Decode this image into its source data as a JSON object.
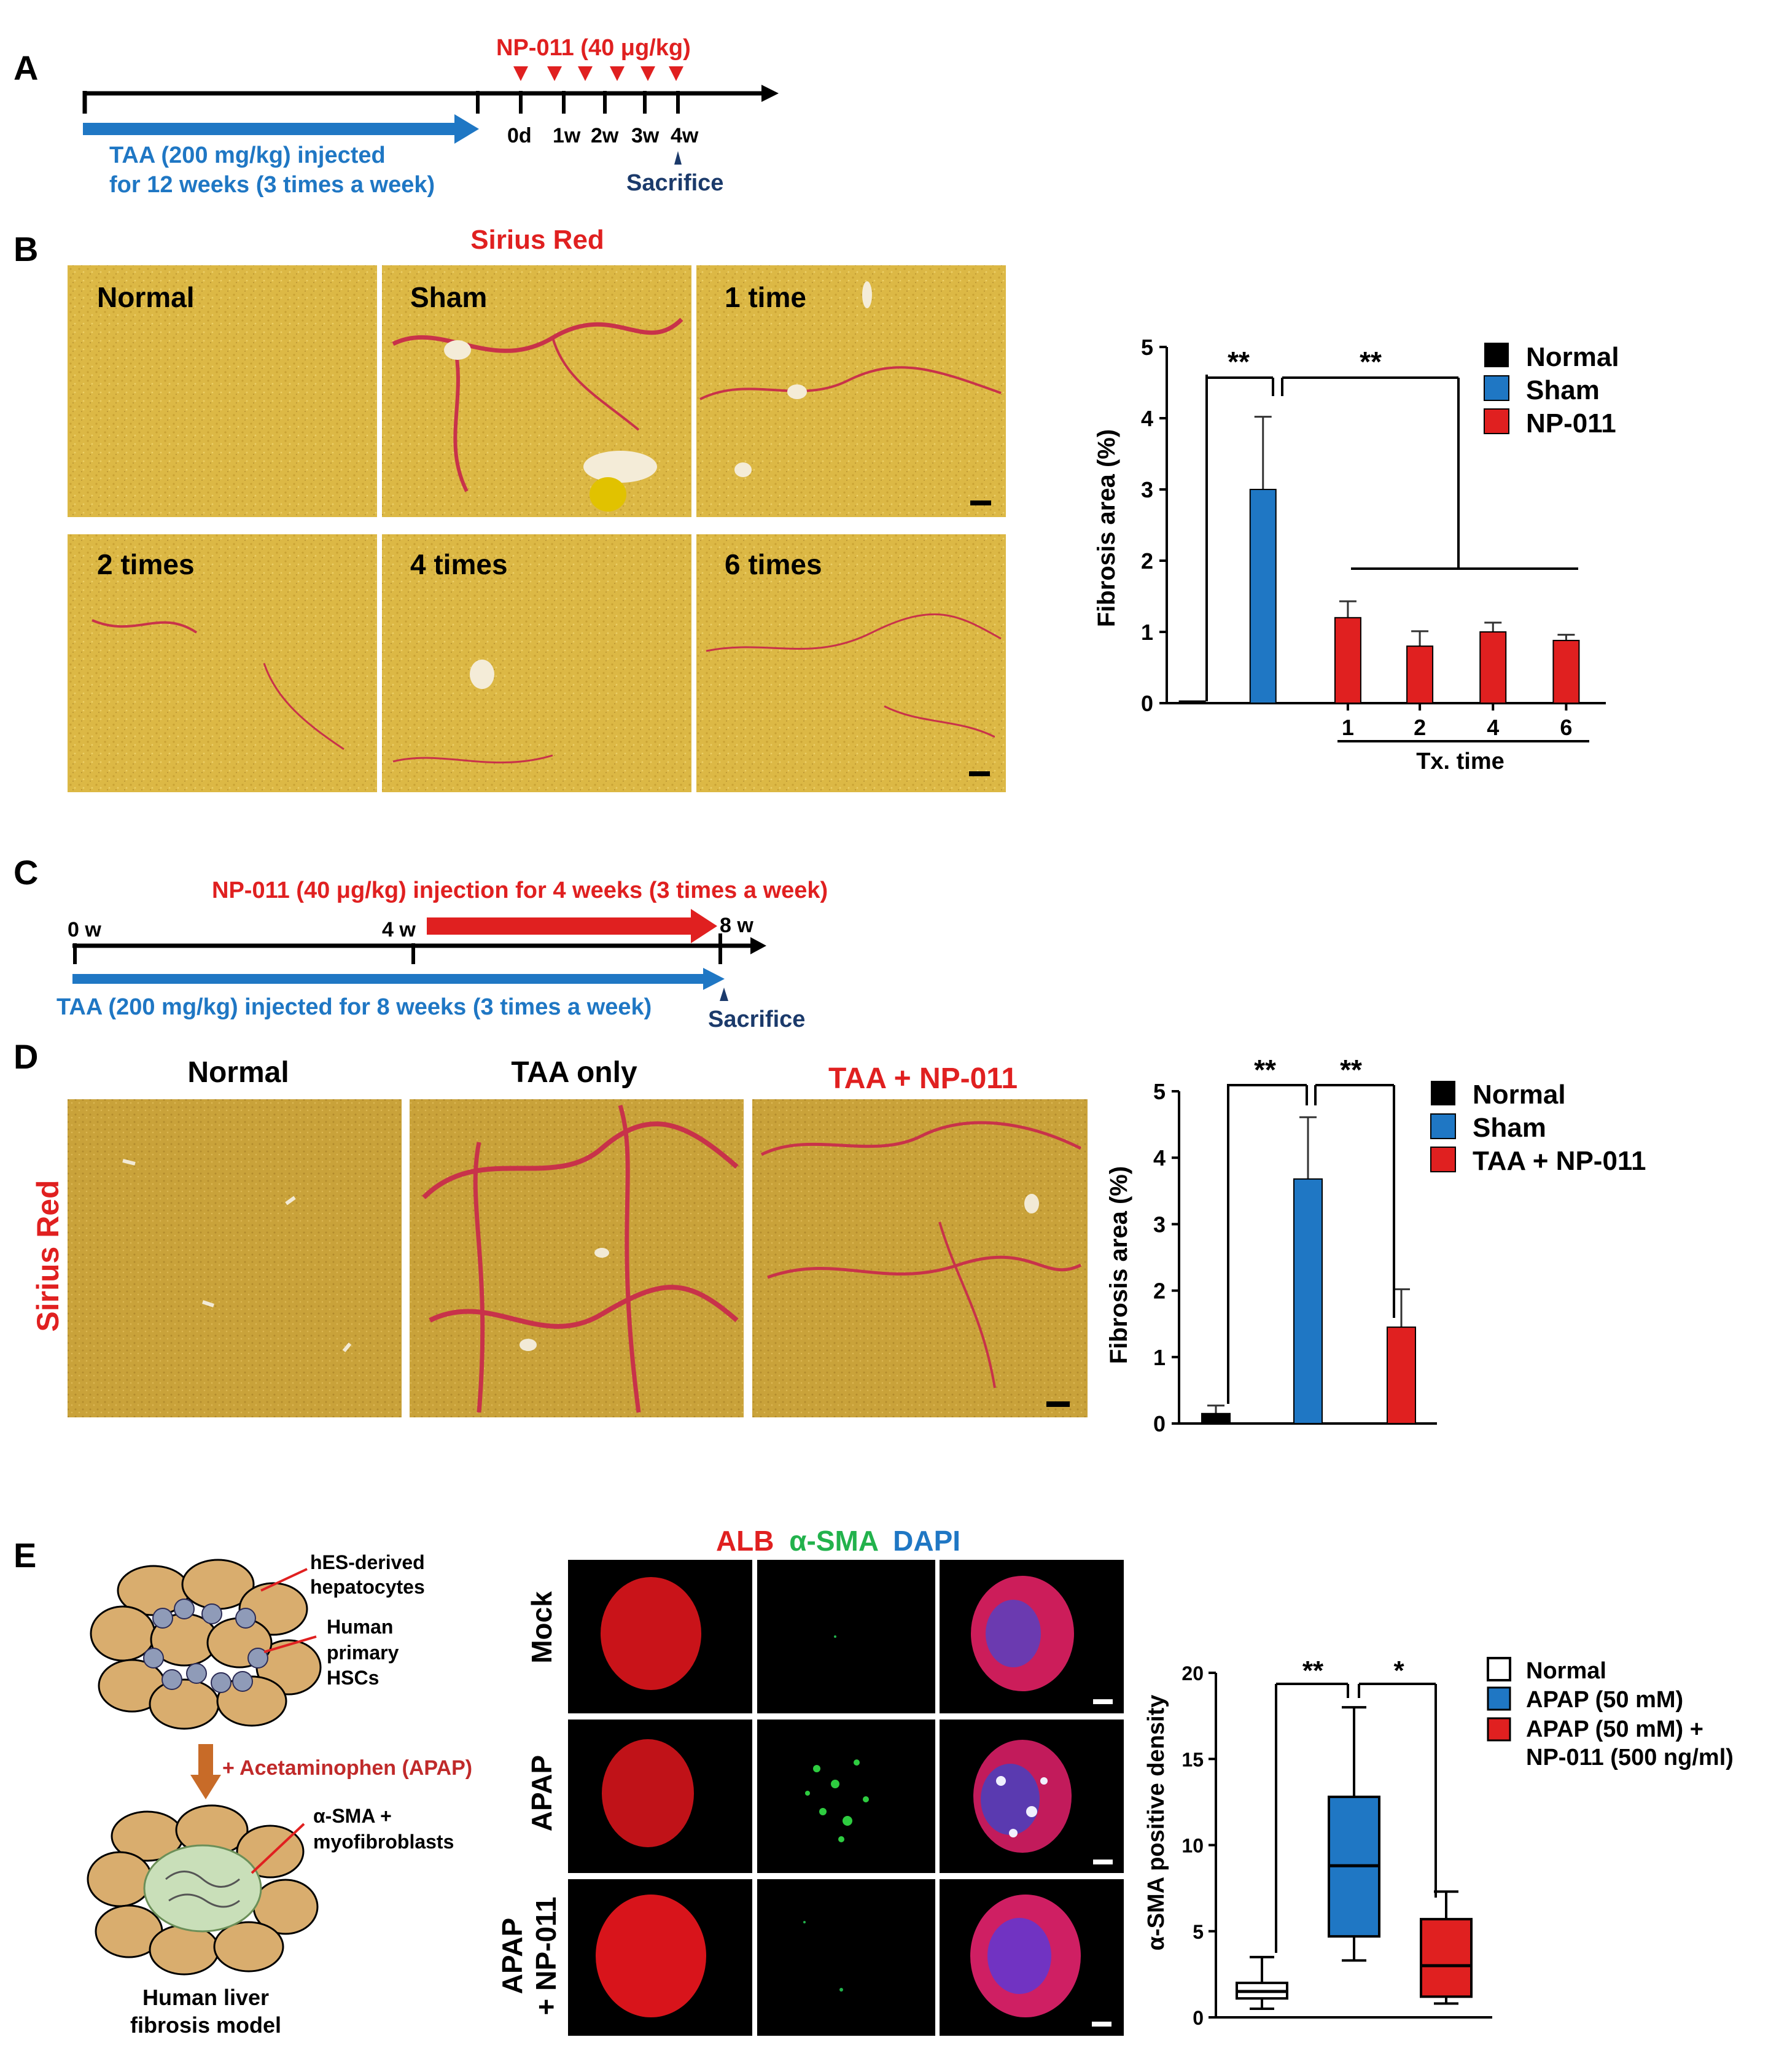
{
  "panel_letters": {
    "a": "A",
    "b": "B",
    "c": "C",
    "d": "D",
    "e": "E"
  },
  "colors": {
    "red": "#e02020",
    "blue": "#1f77c4",
    "navy": "#1b3a6b",
    "black": "#000000",
    "white": "#ffffff",
    "tissue_yellow": "#d9b43e",
    "tissue_d": "#c9a437",
    "fibrosis_red": "#c8324a"
  },
  "panel_a": {
    "np_label": "NP-011 (40 μg/kg)",
    "taa_line1": "TAA (200 mg/kg) injected",
    "taa_line2": "for 12 weeks (3 times a week)",
    "ticks": [
      "0d",
      "1w",
      "2w",
      "3w",
      "4w"
    ],
    "sacrifice": "Sacrifice"
  },
  "panel_b": {
    "title": "Sirius Red",
    "images": [
      "Normal",
      "Sham",
      "1 time",
      "2 times",
      "4 times",
      "6 times"
    ],
    "legend": [
      "Normal",
      "Sham",
      "NP-011"
    ],
    "sig": [
      "**",
      "**"
    ],
    "xgroup_label": "Tx. time"
  },
  "panel_c": {
    "np_label": "NP-011 (40 μg/kg) injection for 4 weeks (3 times a week)",
    "taa_label": "TAA (200 mg/kg) injected for 8 weeks (3 times a week)",
    "ticks": [
      "0 w",
      "4 w",
      "8 w"
    ],
    "sacrifice": "Sacrifice"
  },
  "panel_d": {
    "side_label": "Sirius Red",
    "images": [
      "Normal",
      "TAA only",
      "TAA + NP-011"
    ],
    "legend": [
      "Normal",
      "Sham",
      "TAA + NP-011"
    ],
    "sig": [
      "**",
      "**"
    ]
  },
  "panel_e": {
    "hep_label_1": "hES-derived",
    "hep_label_2": "hepatocytes",
    "hsc_label_1": "Human",
    "hsc_label_2": "primary",
    "hsc_label_3": "HSCs",
    "apap_step": "+ Acetaminophen (APAP)",
    "myo_label_1": "α-SMA +",
    "myo_label_2": "myofibroblasts",
    "model_label_1": "Human liver",
    "model_label_2": "fibrosis model",
    "stain_alb": "ALB",
    "stain_sma": "α-SMA",
    "stain_dapi": "DAPI",
    "rows": [
      "Mock",
      "APAP",
      "APAP\n+ NP-011"
    ],
    "row_apap_np_1": "APAP",
    "row_apap_np_2": "+ NP-011",
    "legend": [
      "Normal",
      "APAP (50 mM)",
      "APAP (50 mM) +",
      "NP-011 (500 ng/ml)"
    ],
    "sig": [
      "**",
      "*"
    ]
  },
  "chart_data": [
    {
      "type": "bar",
      "panel": "B",
      "ylabel": "Fibrosis area (%)",
      "xlabel": "Tx. time",
      "ylim": [
        0,
        5
      ],
      "yticks": [
        0,
        1,
        2,
        3,
        4,
        5
      ],
      "categories": [
        "Normal",
        "Sham",
        "1",
        "2",
        "4",
        "6"
      ],
      "series": [
        {
          "name": "Normal",
          "color": "#000000",
          "values": [
            0.03,
            null,
            null,
            null,
            null,
            null
          ],
          "errors": [
            0.0,
            null,
            null,
            null,
            null,
            null
          ]
        },
        {
          "name": "Sham",
          "color": "#1f77c4",
          "values": [
            null,
            3.0,
            null,
            null,
            null,
            null
          ],
          "errors": [
            null,
            1.02,
            null,
            null,
            null,
            null
          ]
        },
        {
          "name": "NP-011",
          "color": "#e02020",
          "values": [
            null,
            null,
            1.2,
            0.8,
            1.0,
            0.88
          ],
          "errors": [
            null,
            null,
            0.23,
            0.21,
            0.13,
            0.08
          ]
        }
      ]
    },
    {
      "type": "bar",
      "panel": "D",
      "ylabel": "Fibrosis area (%)",
      "ylim": [
        0,
        5
      ],
      "yticks": [
        0,
        1,
        2,
        3,
        4,
        5
      ],
      "categories": [
        "Normal",
        "Sham",
        "TAA + NP-011"
      ],
      "series": [
        {
          "name": "Normal",
          "color": "#000000",
          "values": [
            0.15,
            null,
            null
          ],
          "errors": [
            0.12,
            null,
            null
          ]
        },
        {
          "name": "Sham",
          "color": "#1f77c4",
          "values": [
            null,
            3.68,
            null
          ],
          "errors": [
            null,
            0.93,
            null
          ]
        },
        {
          "name": "TAA + NP-011",
          "color": "#e02020",
          "values": [
            null,
            null,
            1.45
          ],
          "errors": [
            null,
            null,
            0.57
          ]
        }
      ]
    },
    {
      "type": "box",
      "panel": "E",
      "ylabel": "α-SMA positive density",
      "ylim": [
        0,
        20
      ],
      "yticks": [
        0,
        5,
        10,
        15,
        20
      ],
      "categories": [
        "Normal",
        "APAP (50 mM)",
        "APAP (50 mM) + NP-011 (500 ng/ml)"
      ],
      "series": [
        {
          "name": "Normal",
          "color": "#ffffff",
          "min": 0.5,
          "q1": 1.1,
          "median": 1.5,
          "q3": 2.0,
          "max": 3.5
        },
        {
          "name": "APAP (50 mM)",
          "color": "#1f77c4",
          "min": 3.3,
          "q1": 4.7,
          "median": 8.8,
          "q3": 12.8,
          "max": 18.0
        },
        {
          "name": "APAP (50 mM) + NP-011 (500 ng/ml)",
          "color": "#e02020",
          "min": 0.8,
          "q1": 1.2,
          "median": 3.0,
          "q3": 5.7,
          "max": 7.3
        }
      ]
    }
  ]
}
